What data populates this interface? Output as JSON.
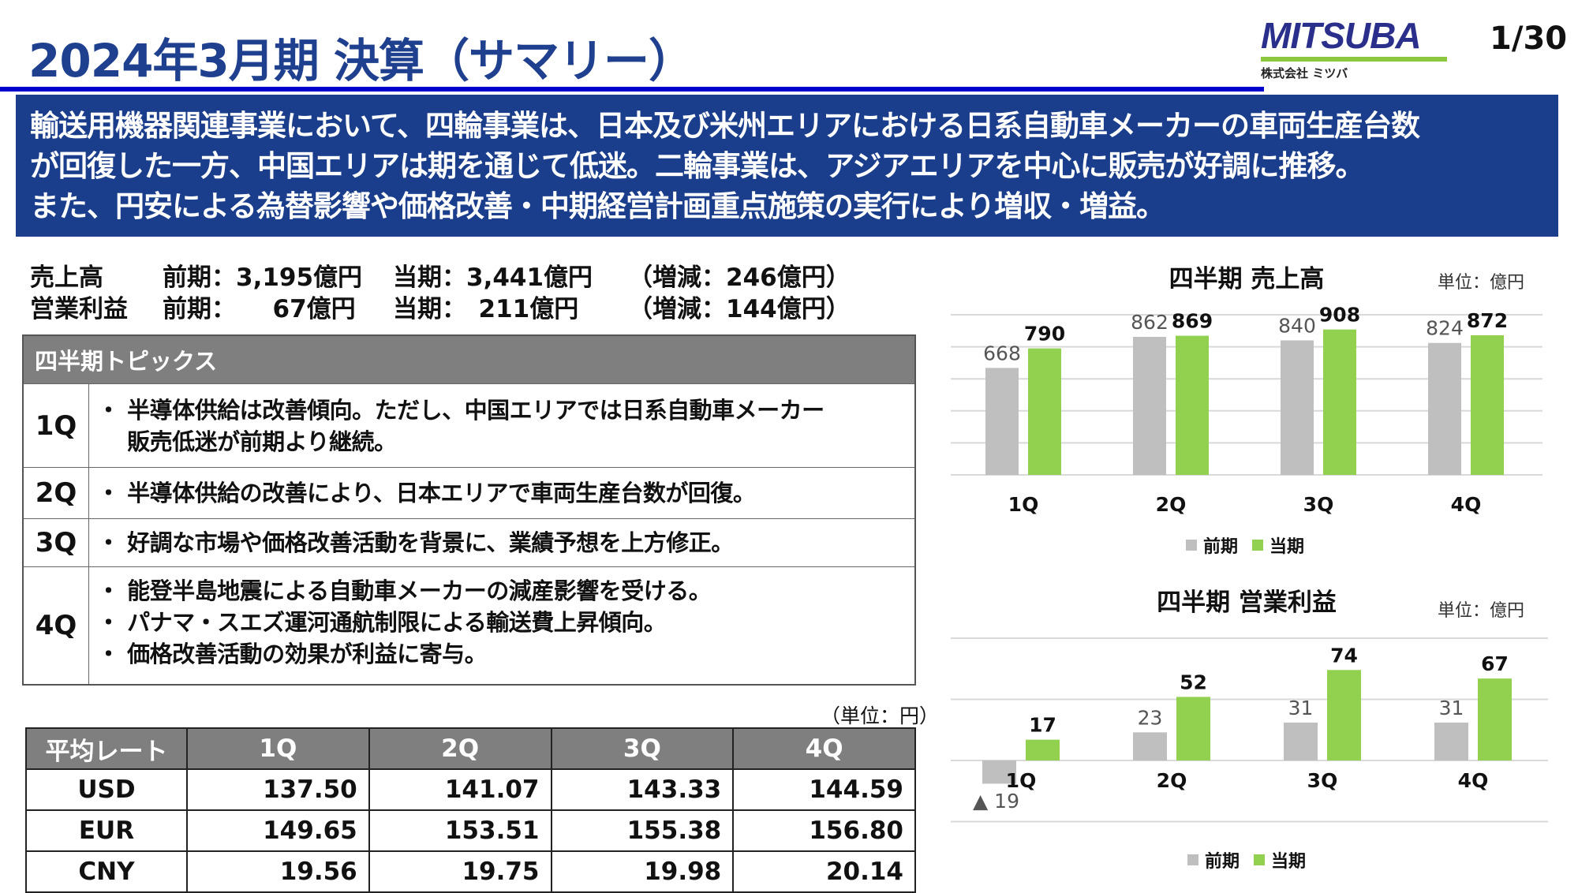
{
  "header": {
    "title": "2024年3月期 決算（サマリー）",
    "logo_text": "MITSUBA",
    "logo_subtext": "株式会社 ミツバ",
    "page_number": "1/30"
  },
  "banner": {
    "lines": [
      "輸送用機器関連事業において、四輪事業は、日本及び米州エリアにおける日系自動車メーカーの車両生産台数",
      "が回復した一方、中国エリアは期を通じて低迷。二輪事業は、アジアエリアを中心に販売が好調に推移。",
      "また、円安による為替影響や価格改善・中期経営計画重点施策の実行により増収・増益。"
    ]
  },
  "summary": [
    {
      "label": "売上高",
      "prev": "前期：3,195億円",
      "curr": "当期：3,441億円",
      "diff": "（増減：246億円）"
    },
    {
      "label": "営業利益",
      "prev": "前期：　　67億円",
      "curr": "当期：　211億円",
      "diff": "（増減：144億円）"
    }
  ],
  "topics": {
    "header": "四半期トピックス",
    "rows": [
      {
        "quarter": "1Q",
        "bullets": [
          "・ 半導体供給は改善傾向。ただし、中国エリアでは日系自動車メーカー",
          "　 販売低迷が前期より継続。"
        ]
      },
      {
        "quarter": "2Q",
        "bullets": [
          "・ 半導体供給の改善により、日本エリアで車両生産台数が回復。"
        ]
      },
      {
        "quarter": "3Q",
        "bullets": [
          "・ 好調な市場や価格改善活動を背景に、業績予想を上方修正。"
        ]
      },
      {
        "quarter": "4Q",
        "bullets": [
          "・ 能登半島地震による自動車メーカーの減産影響を受ける。",
          "・ パナマ・スエズ運河通航制限による輸送費上昇傾向。",
          "・ 価格改善活動の効果が利益に寄与。"
        ]
      }
    ]
  },
  "rates": {
    "unit": "（単位：円）",
    "headers": [
      "平均レート",
      "1Q",
      "2Q",
      "3Q",
      "4Q"
    ],
    "rows": [
      [
        "USD",
        "137.50",
        "141.07",
        "143.33",
        "144.59"
      ],
      [
        "EUR",
        "149.65",
        "153.51",
        "155.38",
        "156.80"
      ],
      [
        "CNY",
        "19.56",
        "19.75",
        "19.98",
        "20.14"
      ]
    ]
  },
  "colors": {
    "brand_blue": "#1a3d8c",
    "prev": "#bfbfbf",
    "curr": "#92d050",
    "header_gray": "#7f7f7f"
  },
  "chart_data": [
    {
      "type": "bar",
      "title": "四半期 売上高",
      "unit": "単位：億円",
      "categories": [
        "1Q",
        "2Q",
        "3Q",
        "4Q"
      ],
      "series": [
        {
          "name": "前期",
          "values": [
            668,
            862,
            840,
            824
          ],
          "color": "#bfbfbf"
        },
        {
          "name": "当期",
          "values": [
            790,
            869,
            908,
            872
          ],
          "color": "#92d050"
        }
      ],
      "ylim": [
        0,
        1000
      ],
      "grid_step": 200,
      "grid": true,
      "legend": "bottom"
    },
    {
      "type": "bar",
      "title": "四半期 営業利益",
      "unit": "単位：億円",
      "categories": [
        "1Q",
        "2Q",
        "3Q",
        "4Q"
      ],
      "series": [
        {
          "name": "前期",
          "values": [
            -19,
            23,
            31,
            31
          ],
          "labels": [
            "▲ 19",
            "23",
            "31",
            "31"
          ],
          "color": "#bfbfbf"
        },
        {
          "name": "当期",
          "values": [
            17,
            52,
            74,
            67
          ],
          "labels": [
            "17",
            "52",
            "74",
            "67"
          ],
          "color": "#92d050"
        }
      ],
      "ylim": [
        -50,
        100
      ],
      "grid_step": 50,
      "grid": true,
      "legend": "bottom"
    }
  ]
}
